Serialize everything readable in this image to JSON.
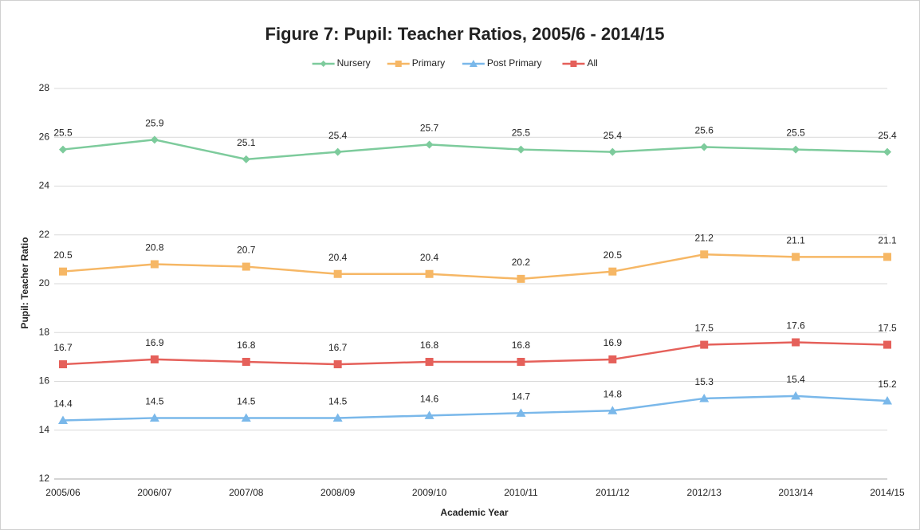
{
  "chart_data": {
    "type": "line",
    "title": "Figure 7: Pupil: Teacher Ratios, 2005/6 - 2014/15",
    "x_label": "Academic Year",
    "y_label": "Pupil: Teacher Ratio",
    "categories": [
      "2005/06",
      "2006/07",
      "2007/08",
      "2008/09",
      "2009/10",
      "2010/11",
      "2011/12",
      "2012/13",
      "2013/14",
      "2014/15"
    ],
    "series": [
      {
        "name": "Nursery",
        "color": "#7dcb9c",
        "marker": "diamond",
        "values": [
          25.5,
          25.9,
          25.1,
          25.4,
          25.7,
          25.5,
          25.4,
          25.6,
          25.5,
          25.4
        ]
      },
      {
        "name": "Primary",
        "color": "#f6b765",
        "marker": "square",
        "values": [
          20.5,
          20.8,
          20.7,
          20.4,
          20.4,
          20.2,
          20.5,
          21.2,
          21.1,
          21.1
        ]
      },
      {
        "name": "Post Primary",
        "color": "#7ab8ea",
        "marker": "triangle",
        "values": [
          14.4,
          14.5,
          14.5,
          14.5,
          14.6,
          14.7,
          14.8,
          15.3,
          15.4,
          15.2
        ]
      },
      {
        "name": "All",
        "color": "#e5605a",
        "marker": "square",
        "values": [
          16.7,
          16.9,
          16.8,
          16.7,
          16.8,
          16.8,
          16.9,
          17.5,
          17.6,
          17.5
        ]
      }
    ],
    "ylim": [
      12,
      28
    ],
    "yticks": [
      12,
      14,
      16,
      18,
      20,
      22,
      24,
      26,
      28
    ],
    "grid": true,
    "legend": "top"
  }
}
